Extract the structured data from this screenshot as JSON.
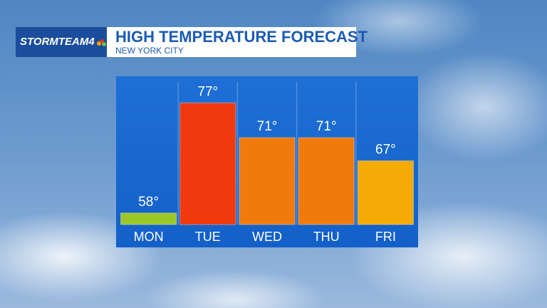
{
  "chart_data": {
    "type": "bar",
    "logo": "STORMTEAM4",
    "title": "HIGH TEMPERATURE FORECAST",
    "subtitle": "NEW YORK CITY",
    "categories": [
      "MON",
      "TUE",
      "WED",
      "THU",
      "FRI"
    ],
    "values": [
      58,
      77,
      71,
      71,
      67
    ],
    "value_labels": [
      "58°",
      "77°",
      "71°",
      "71°",
      "67°"
    ],
    "colors": [
      "#9cc72a",
      "#f0390c",
      "#f07a0c",
      "#f07a0c",
      "#f5aa05"
    ],
    "ylim": [
      56,
      79
    ]
  }
}
